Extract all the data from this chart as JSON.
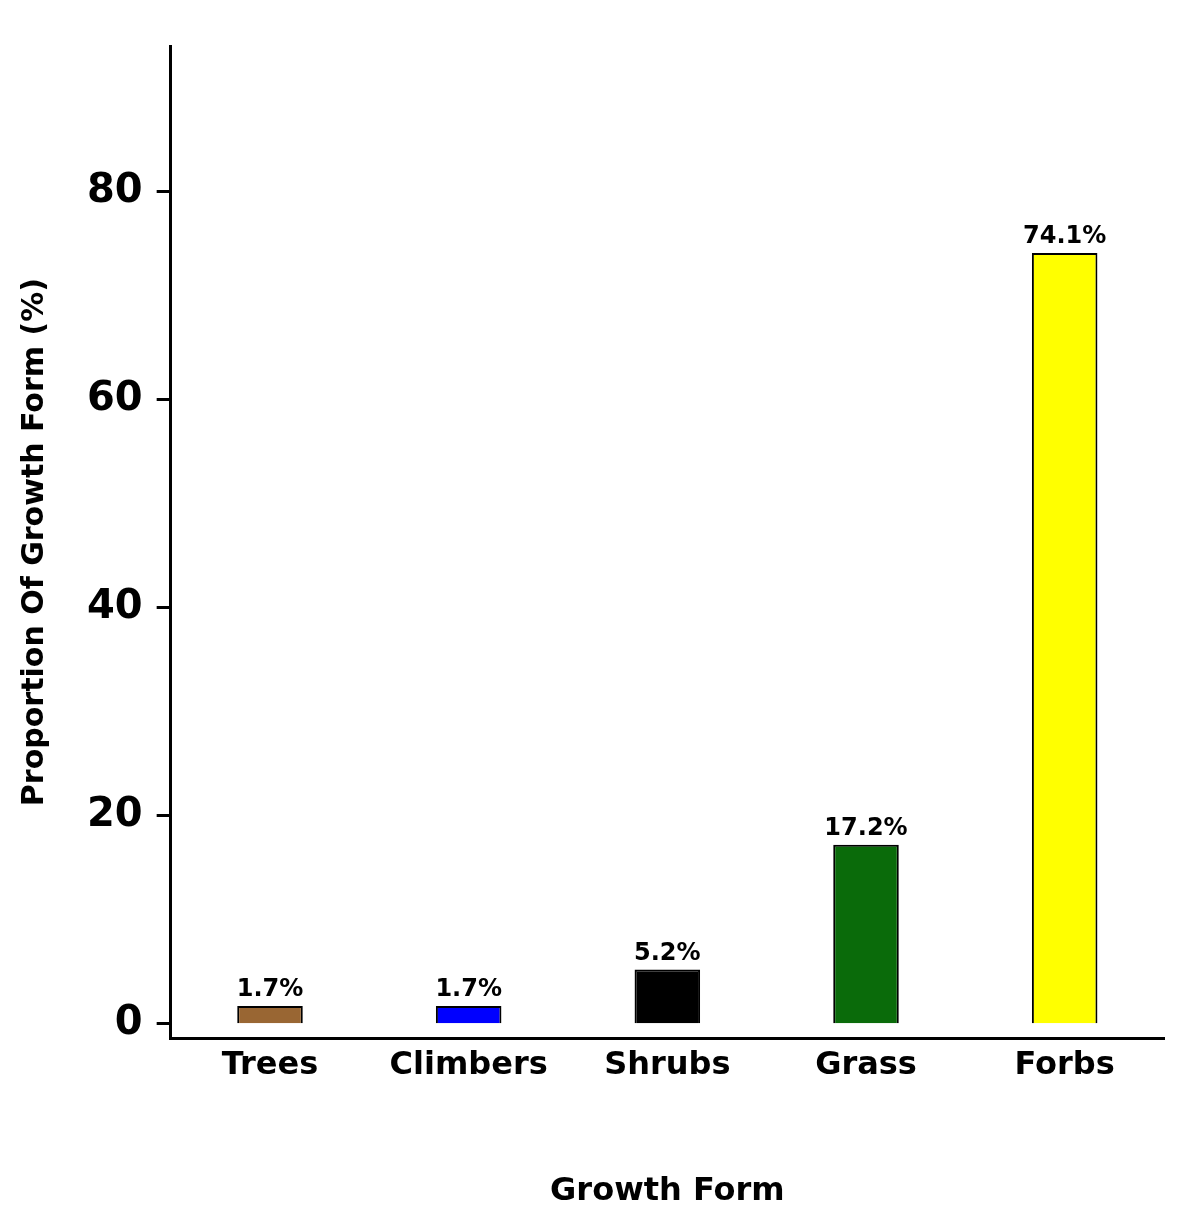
{
  "chart_data": {
    "type": "bar",
    "xlabel": "Growth Form",
    "ylabel": "Proportion Of Growth Form (%)",
    "categories": [
      "Trees",
      "Climbers",
      "Shrubs",
      "Grass",
      "Forbs"
    ],
    "values": [
      1.7,
      1.7,
      5.2,
      17.2,
      74.1
    ],
    "colors": [
      "#996633",
      "#0000ff",
      "#000000",
      "#0a6b0a",
      "#ffff00"
    ],
    "value_labels": [
      "1.7%",
      "1.7%",
      "5.2%",
      "17.2%",
      "74.1%"
    ],
    "ylim": [
      -1.4,
      94
    ],
    "yticks": [
      0,
      20,
      40,
      60,
      80
    ],
    "grid": false,
    "legend": false
  }
}
